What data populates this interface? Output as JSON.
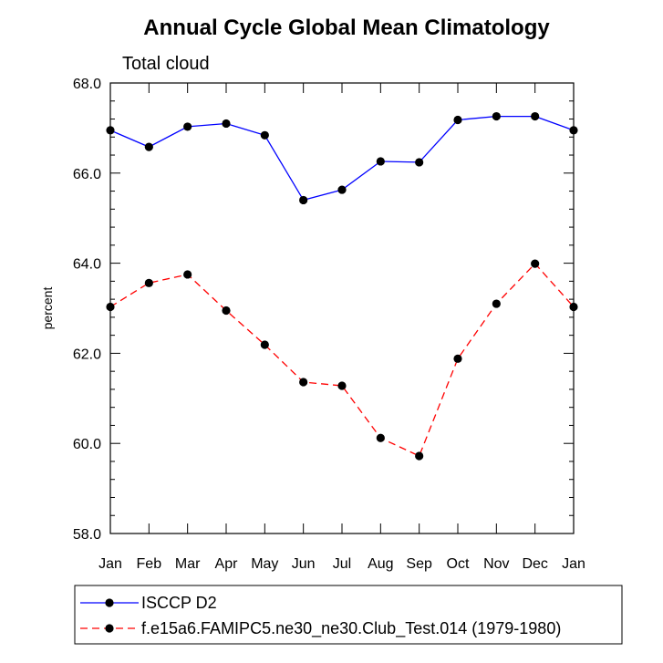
{
  "chart_data": {
    "type": "line",
    "title": "Annual Cycle Global Mean Climatology",
    "subtitle": "Total cloud",
    "xlabel": "",
    "ylabel": "percent",
    "categories": [
      "Jan",
      "Feb",
      "Mar",
      "Apr",
      "May",
      "Jun",
      "Jul",
      "Aug",
      "Sep",
      "Oct",
      "Nov",
      "Dec",
      "Jan"
    ],
    "ylim": [
      58.0,
      68.0
    ],
    "yticks": [
      "58.0",
      "60.0",
      "62.0",
      "64.0",
      "66.0",
      "68.0"
    ],
    "grid": false,
    "legend_placement": "bottom",
    "series": [
      {
        "name": "ISCCP D2",
        "color": "#0000ff",
        "line_style": "solid",
        "marker": "filled-circle",
        "values": [
          66.95,
          66.58,
          67.03,
          67.1,
          66.84,
          65.4,
          65.63,
          66.26,
          66.24,
          67.18,
          67.26,
          67.26,
          66.95
        ]
      },
      {
        "name": "f.e15a6.FAMIPC5.ne30_ne30.Club_Test.014 (1979-1980)",
        "color": "#ff0000",
        "line_style": "dashed",
        "marker": "filled-circle",
        "values": [
          63.03,
          63.56,
          63.75,
          62.95,
          62.19,
          61.36,
          61.28,
          60.12,
          59.72,
          61.88,
          63.1,
          63.99,
          63.03
        ]
      }
    ]
  }
}
